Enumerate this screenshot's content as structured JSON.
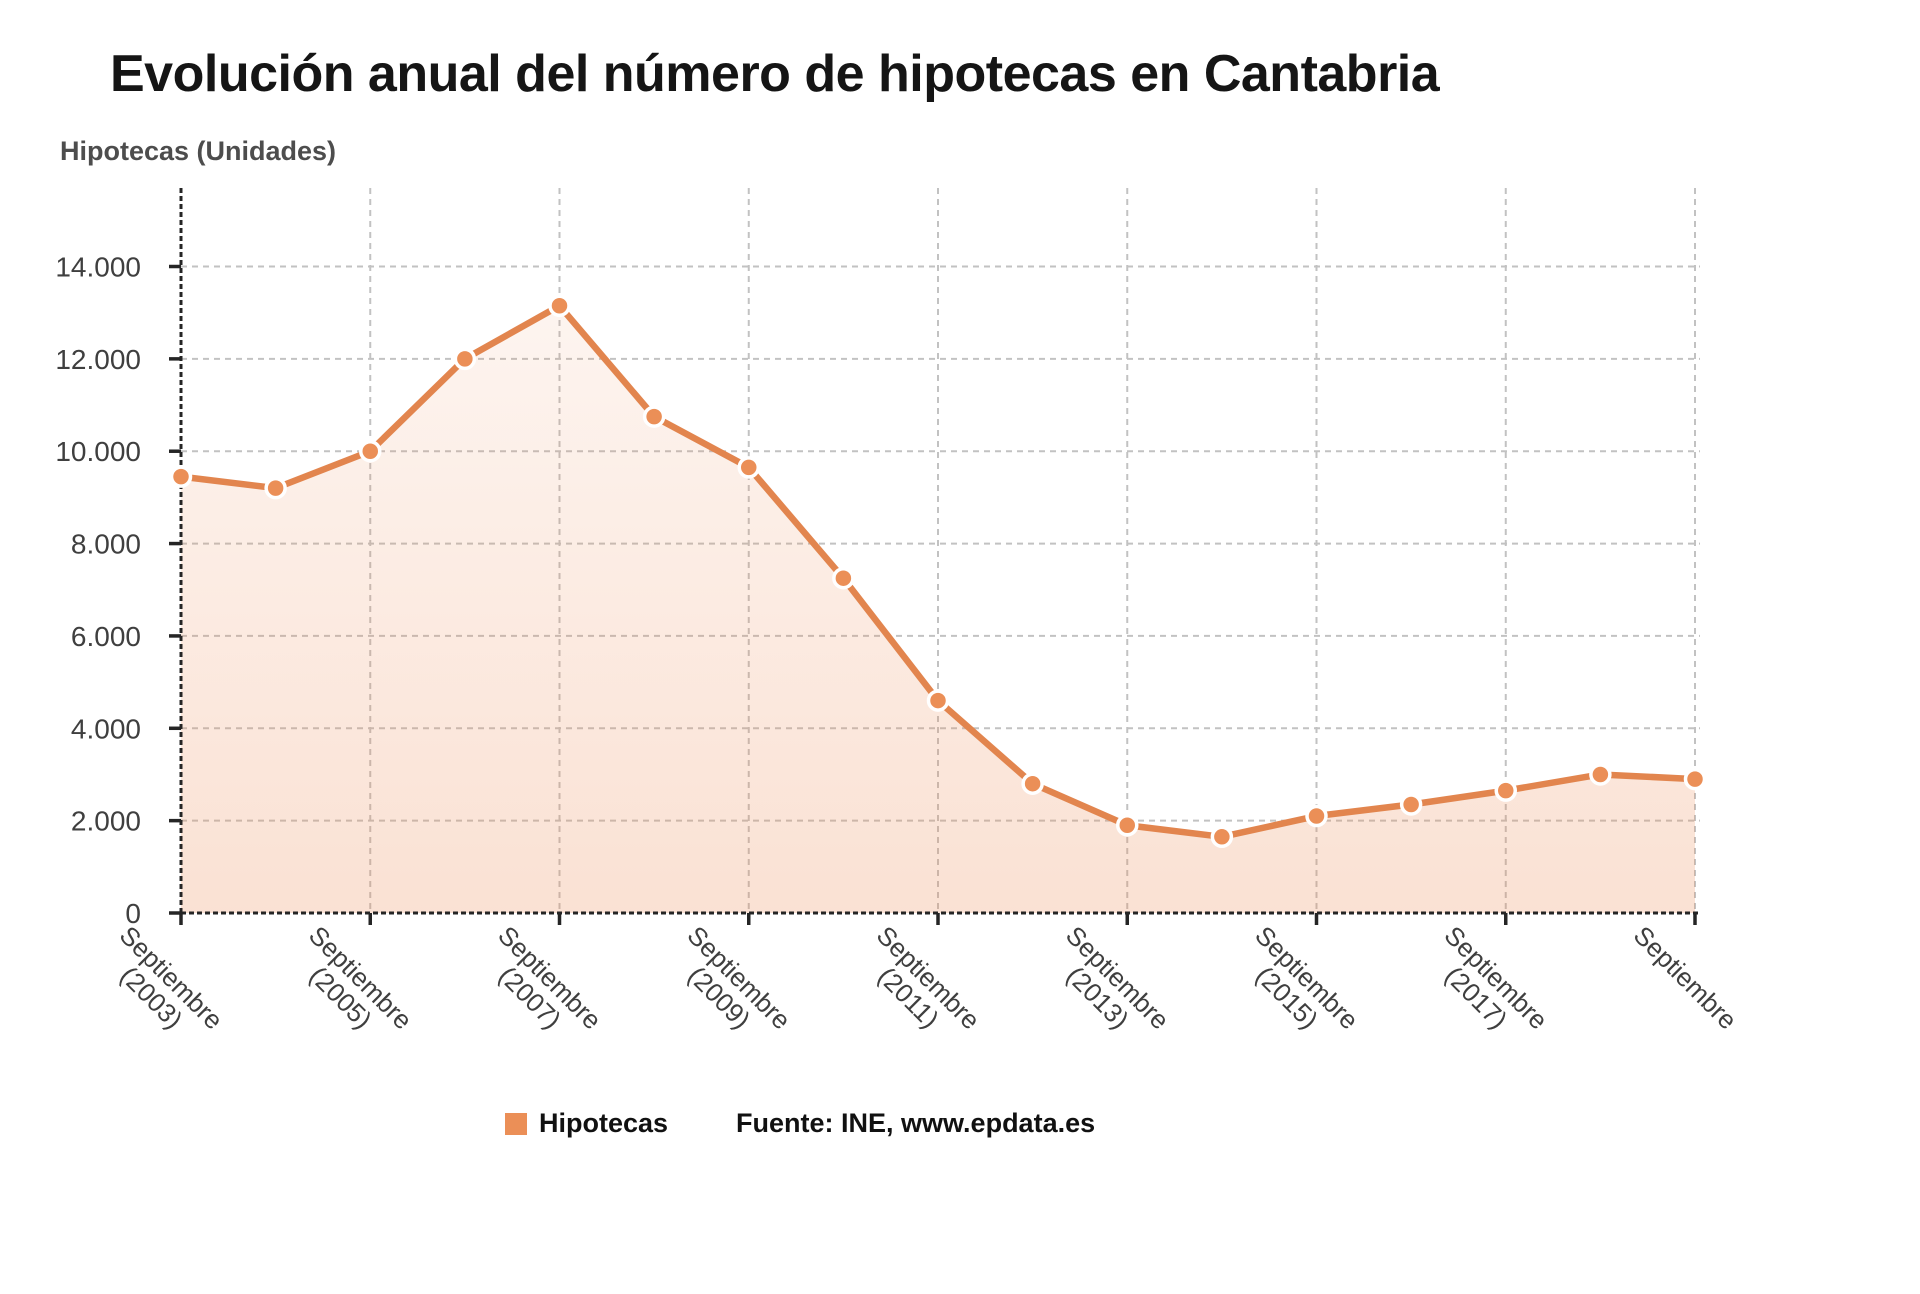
{
  "title": "Evolución anual del número de hipotecas en Cantabria",
  "axis_title": "Hipotecas (Unidades)",
  "legend": {
    "label": "Hipotecas",
    "source": "Fuente: INE, www.epdata.es"
  },
  "colors": {
    "line": "#E2854E",
    "marker": "#EB8F57",
    "marker_ring": "#FFFFFF",
    "area_top": "rgba(236,140,87,0.06)",
    "area_bottom": "rgba(236,140,87,0.26)",
    "grid": "#C2C2C2",
    "axis": "#252525",
    "tick_text": "#3F3F3F"
  },
  "chart_data": {
    "type": "area",
    "title": "Evolución anual del número de hipotecas en Cantabria",
    "ylabel": "Hipotecas (Unidades)",
    "series": [
      {
        "name": "Hipotecas",
        "x": [
          2003,
          2004,
          2005,
          2006,
          2007,
          2008,
          2009,
          2010,
          2011,
          2012,
          2013,
          2014,
          2015,
          2016,
          2017,
          2018,
          2019
        ],
        "values": [
          9450,
          9200,
          10000,
          12000,
          13150,
          10750,
          9650,
          7250,
          4600,
          2800,
          1900,
          1650,
          2100,
          2350,
          2650,
          3000,
          2900
        ]
      }
    ],
    "x_visible_ticks": [
      {
        "index": 0,
        "lines": [
          "Septiembre",
          "(2003)"
        ]
      },
      {
        "index": 2,
        "lines": [
          "Septiembre",
          "(2005)"
        ]
      },
      {
        "index": 4,
        "lines": [
          "Septiembre",
          "(2007)"
        ]
      },
      {
        "index": 6,
        "lines": [
          "Septiembre",
          "(2009)"
        ]
      },
      {
        "index": 8,
        "lines": [
          "Septiembre",
          "(2011)"
        ]
      },
      {
        "index": 10,
        "lines": [
          "Septiembre",
          "(2013)"
        ]
      },
      {
        "index": 12,
        "lines": [
          "Septiembre",
          "(2015)"
        ]
      },
      {
        "index": 14,
        "lines": [
          "Septiembre",
          "(2017)"
        ]
      },
      {
        "index": 16,
        "lines": [
          "Septiembre"
        ]
      }
    ],
    "y_ticks": [
      0,
      2000,
      4000,
      6000,
      8000,
      10000,
      12000,
      14000
    ],
    "y_tick_labels": [
      "0",
      "2.000",
      "4.000",
      "6.000",
      "8.000",
      "10.000",
      "12.000",
      "14.000"
    ],
    "ylim": [
      0,
      15700
    ],
    "grid": true,
    "legend_position": "bottom",
    "source": "Fuente: INE, www.epdata.es"
  }
}
